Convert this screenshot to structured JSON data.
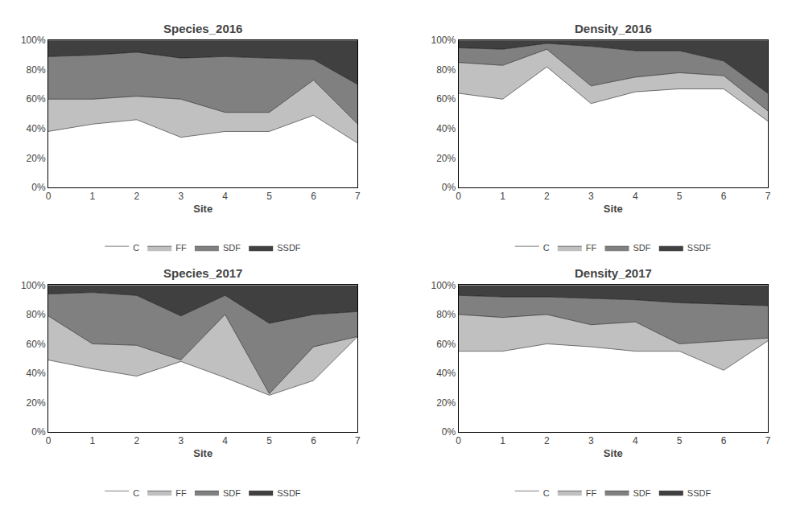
{
  "chart_data": [
    {
      "type": "area",
      "title": "Species_2016",
      "xlabel": "Site",
      "x": [
        0,
        1,
        2,
        3,
        4,
        5,
        6,
        7
      ],
      "xlim": [
        0,
        7
      ],
      "xticks": [
        0,
        1,
        2,
        3,
        4,
        5,
        6,
        7
      ],
      "ylim": [
        0,
        1
      ],
      "yticks": [
        {
          "value": 0,
          "label": "0%"
        },
        {
          "value": 0.2,
          "label": "20%"
        },
        {
          "value": 0.4,
          "label": "40%"
        },
        {
          "value": 0.6,
          "label": "60%"
        },
        {
          "value": 0.8,
          "label": "80%"
        },
        {
          "value": 1,
          "label": "100%"
        }
      ],
      "stacked": true,
      "grid": false,
      "legend": "bottom",
      "series": [
        {
          "name": "C",
          "color": "#ffffff",
          "values": [
            0.38,
            0.43,
            0.46,
            0.34,
            0.38,
            0.38,
            0.49,
            0.3
          ]
        },
        {
          "name": "FF",
          "color": "#c0c0c0",
          "values": [
            0.22,
            0.17,
            0.16,
            0.26,
            0.13,
            0.13,
            0.24,
            0.13
          ]
        },
        {
          "name": "SDF",
          "color": "#808080",
          "values": [
            0.29,
            0.3,
            0.3,
            0.28,
            0.38,
            0.37,
            0.14,
            0.27
          ]
        },
        {
          "name": "SSDF",
          "color": "#404040",
          "values": [
            0.11,
            0.1,
            0.08,
            0.12,
            0.11,
            0.12,
            0.13,
            0.3
          ]
        }
      ]
    },
    {
      "type": "area",
      "title": "Density_2016",
      "xlabel": "Site",
      "x": [
        0,
        1,
        2,
        3,
        4,
        5,
        6,
        7
      ],
      "xlim": [
        0,
        7
      ],
      "xticks": [
        0,
        1,
        2,
        3,
        4,
        5,
        6,
        7
      ],
      "ylim": [
        0,
        1
      ],
      "yticks": [
        {
          "value": 0,
          "label": "0%"
        },
        {
          "value": 0.2,
          "label": "20%"
        },
        {
          "value": 0.4,
          "label": "40%"
        },
        {
          "value": 0.6,
          "label": "60%"
        },
        {
          "value": 0.8,
          "label": "80%"
        },
        {
          "value": 1,
          "label": "100%"
        }
      ],
      "stacked": true,
      "grid": false,
      "legend": "bottom",
      "series": [
        {
          "name": "C",
          "color": "#ffffff",
          "values": [
            0.64,
            0.6,
            0.82,
            0.57,
            0.65,
            0.67,
            0.67,
            0.45
          ]
        },
        {
          "name": "FF",
          "color": "#c0c0c0",
          "values": [
            0.21,
            0.23,
            0.12,
            0.12,
            0.1,
            0.11,
            0.09,
            0.07
          ]
        },
        {
          "name": "SDF",
          "color": "#808080",
          "values": [
            0.1,
            0.11,
            0.04,
            0.27,
            0.18,
            0.15,
            0.1,
            0.12
          ]
        },
        {
          "name": "SSDF",
          "color": "#404040",
          "values": [
            0.05,
            0.06,
            0.02,
            0.04,
            0.07,
            0.07,
            0.14,
            0.36
          ]
        }
      ]
    },
    {
      "type": "area",
      "title": "Species_2017",
      "xlabel": "Site",
      "x": [
        0,
        1,
        2,
        3,
        4,
        5,
        6,
        7
      ],
      "xlim": [
        0,
        7
      ],
      "xticks": [
        0,
        1,
        2,
        3,
        4,
        5,
        6,
        7
      ],
      "ylim": [
        0,
        1
      ],
      "yticks": [
        {
          "value": 0,
          "label": "0%"
        },
        {
          "value": 0.2,
          "label": "20%"
        },
        {
          "value": 0.4,
          "label": "40%"
        },
        {
          "value": 0.6,
          "label": "60%"
        },
        {
          "value": 0.8,
          "label": "80%"
        },
        {
          "value": 1,
          "label": "100%"
        }
      ],
      "stacked": true,
      "grid": false,
      "legend": "bottom",
      "series": [
        {
          "name": "C",
          "color": "#ffffff",
          "values": [
            0.49,
            0.43,
            0.38,
            0.48,
            0.37,
            0.25,
            0.35,
            0.65
          ]
        },
        {
          "name": "FF",
          "color": "#c0c0c0",
          "values": [
            0.3,
            0.17,
            0.21,
            0.01,
            0.43,
            0.01,
            0.23,
            0.0
          ]
        },
        {
          "name": "SDF",
          "color": "#808080",
          "values": [
            0.15,
            0.35,
            0.34,
            0.3,
            0.13,
            0.48,
            0.22,
            0.17
          ]
        },
        {
          "name": "SSDF",
          "color": "#404040",
          "values": [
            0.06,
            0.05,
            0.07,
            0.21,
            0.07,
            0.26,
            0.2,
            0.18
          ]
        }
      ]
    },
    {
      "type": "area",
      "title": "Density_2017",
      "xlabel": "Site",
      "x": [
        0,
        1,
        2,
        3,
        4,
        5,
        6,
        7
      ],
      "xlim": [
        0,
        7
      ],
      "xticks": [
        0,
        1,
        2,
        3,
        4,
        5,
        6,
        7
      ],
      "ylim": [
        0,
        1
      ],
      "yticks": [
        {
          "value": 0,
          "label": "0%"
        },
        {
          "value": 0.2,
          "label": "20%"
        },
        {
          "value": 0.4,
          "label": "40%"
        },
        {
          "value": 0.6,
          "label": "60%"
        },
        {
          "value": 0.8,
          "label": "80%"
        },
        {
          "value": 1,
          "label": "100%"
        }
      ],
      "stacked": true,
      "grid": false,
      "legend": "bottom",
      "series": [
        {
          "name": "C",
          "color": "#ffffff",
          "values": [
            0.55,
            0.55,
            0.6,
            0.58,
            0.55,
            0.55,
            0.42,
            0.62
          ]
        },
        {
          "name": "FF",
          "color": "#c0c0c0",
          "values": [
            0.25,
            0.23,
            0.2,
            0.15,
            0.2,
            0.05,
            0.2,
            0.02
          ]
        },
        {
          "name": "SDF",
          "color": "#808080",
          "values": [
            0.13,
            0.14,
            0.12,
            0.18,
            0.15,
            0.28,
            0.25,
            0.22
          ]
        },
        {
          "name": "SSDF",
          "color": "#404040",
          "values": [
            0.07,
            0.08,
            0.08,
            0.09,
            0.1,
            0.12,
            0.13,
            0.14
          ]
        }
      ]
    }
  ]
}
